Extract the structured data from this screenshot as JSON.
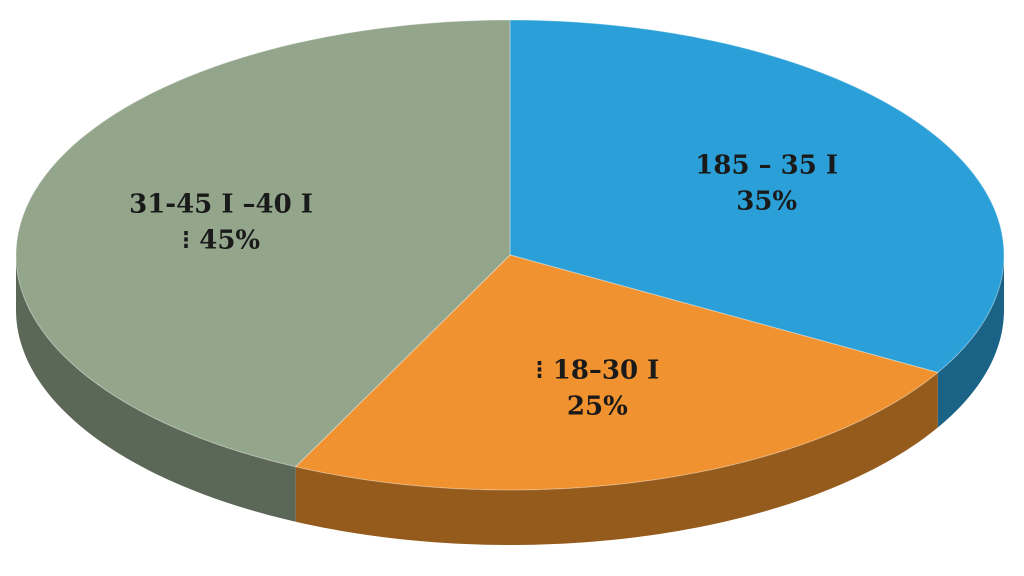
{
  "chart_data": {
    "type": "pie",
    "categories": [
      "185 – 35 I",
      "⁝ 18–30 I",
      "31-45 I –40 I"
    ],
    "values": [
      35,
      25,
      45
    ],
    "value_labels": [
      "35%",
      "25%",
      "⁝ 45%"
    ],
    "colors": [
      "#2ba0d8",
      "#f0922f",
      "#93a68c"
    ]
  }
}
